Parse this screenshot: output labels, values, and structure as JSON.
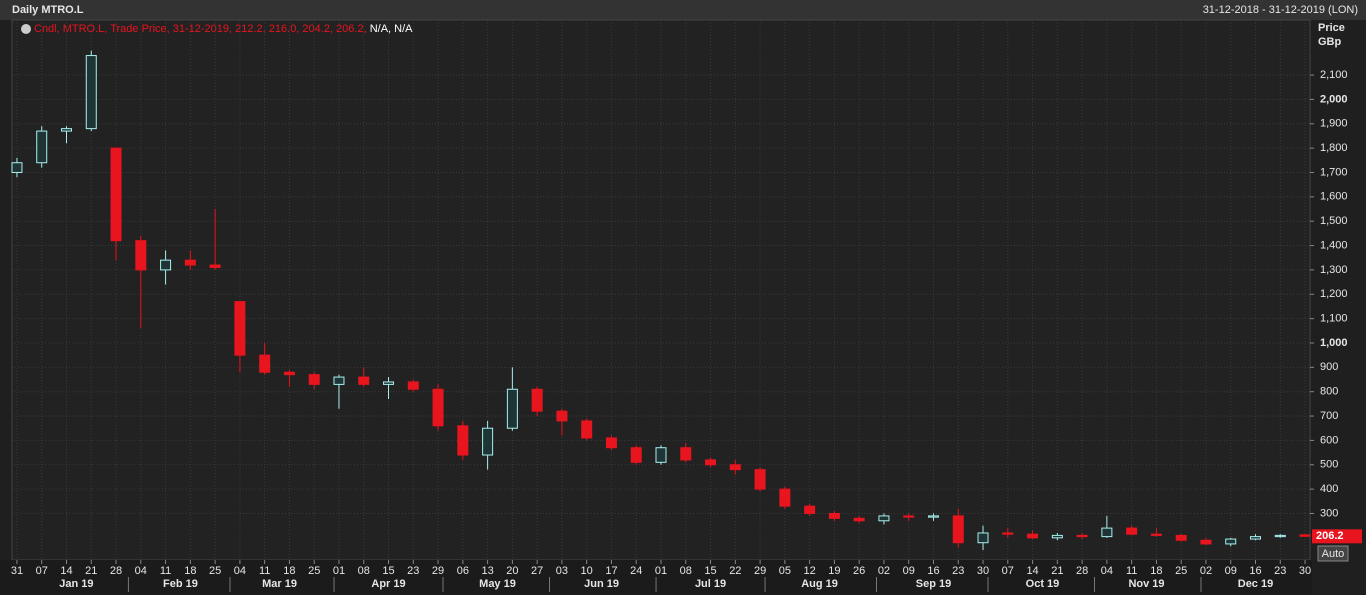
{
  "chart_data": {
    "type": "candlestick",
    "title": "Daily MTRO.L",
    "date_range": "31-12-2018 - 31-12-2019 (LON)",
    "legend_text": "Cndl, MTRO.L, Trade Price, 31-12-2019, 212.2, 216.0, 204.2, 206.2, ",
    "legend_na": "N/A, N/A",
    "y_label": "Price",
    "y_unit": "GBp",
    "auto_button": "Auto",
    "last_price": 206.2,
    "up_color": "#a8f0f0",
    "down_color": "#e8141e",
    "grid": true,
    "xlim": [
      -1,
      261
    ],
    "ylim": [
      109,
      2326
    ],
    "x": [
      0,
      5,
      10,
      15,
      20,
      25,
      30,
      35,
      40,
      45,
      50,
      55,
      60,
      65,
      70,
      75,
      80,
      85,
      90,
      95,
      100,
      105,
      110,
      115,
      120,
      125,
      130,
      135,
      140,
      145,
      150,
      155,
      160,
      165,
      170,
      175,
      180,
      185,
      190,
      195,
      200,
      205,
      210,
      215,
      220,
      225,
      230,
      235,
      240,
      245,
      250,
      255,
      260
    ],
    "open": [
      1700,
      1740,
      1870,
      1880,
      1800,
      1420,
      1300,
      1340,
      1320,
      1170,
      950,
      880,
      870,
      830,
      860,
      830,
      840,
      810,
      660,
      540,
      650,
      810,
      720,
      680,
      610,
      570,
      510,
      570,
      520,
      500,
      480,
      400,
      330,
      300,
      280,
      270,
      290,
      285,
      290,
      180,
      220,
      215,
      200,
      210,
      205,
      240,
      215,
      210,
      190,
      175,
      195,
      205,
      212.2
    ],
    "high": [
      1760,
      1890,
      1890,
      2200,
      1800,
      1440,
      1380,
      1380,
      1550,
      1170,
      1000,
      890,
      880,
      870,
      900,
      860,
      850,
      830,
      680,
      680,
      900,
      820,
      730,
      690,
      620,
      580,
      580,
      590,
      530,
      520,
      490,
      410,
      340,
      310,
      290,
      300,
      300,
      300,
      320,
      250,
      240,
      230,
      220,
      220,
      290,
      250,
      240,
      215,
      200,
      200,
      215,
      215,
      216
    ],
    "low": [
      1680,
      1720,
      1820,
      1870,
      1340,
      1060,
      1240,
      1300,
      1300,
      880,
      870,
      820,
      810,
      730,
      820,
      770,
      800,
      640,
      520,
      480,
      640,
      700,
      620,
      600,
      560,
      500,
      500,
      510,
      490,
      460,
      390,
      320,
      290,
      270,
      260,
      255,
      270,
      270,
      160,
      150,
      200,
      195,
      190,
      195,
      200,
      210,
      205,
      185,
      170,
      165,
      190,
      200,
      204.2
    ],
    "close": [
      1740,
      1870,
      1880,
      2180,
      1420,
      1300,
      1340,
      1320,
      1310,
      950,
      880,
      870,
      830,
      860,
      830,
      840,
      810,
      660,
      540,
      650,
      810,
      720,
      680,
      610,
      570,
      510,
      570,
      520,
      500,
      480,
      400,
      330,
      300,
      280,
      270,
      290,
      285,
      290,
      180,
      220,
      215,
      200,
      210,
      205,
      240,
      215,
      210,
      190,
      175,
      195,
      205,
      210,
      206.2
    ],
    "yticks": [
      300,
      400,
      500,
      600,
      700,
      800,
      900,
      {
        "value": 1000,
        "label": "1,000",
        "bold": true
      },
      {
        "value": 1100,
        "label": "1,100"
      },
      {
        "value": 1200,
        "label": "1,200"
      },
      {
        "value": 1300,
        "label": "1,300"
      },
      {
        "value": 1400,
        "label": "1,400"
      },
      {
        "value": 1500,
        "label": "1,500"
      },
      {
        "value": 1600,
        "label": "1,600"
      },
      {
        "value": 1700,
        "label": "1,700"
      },
      {
        "value": 1800,
        "label": "1,800"
      },
      {
        "value": 1900,
        "label": "1,900"
      },
      {
        "value": 2000,
        "label": "2,000",
        "bold": true
      },
      {
        "value": 2100,
        "label": "2,100"
      }
    ],
    "xticks": [
      {
        "value": 0,
        "label": "31"
      },
      {
        "value": 5,
        "label": "07"
      },
      {
        "value": 10,
        "label": "14"
      },
      {
        "value": 15,
        "label": "21"
      },
      {
        "value": 20,
        "label": "28"
      },
      {
        "value": 25,
        "label": "04"
      },
      {
        "value": 30,
        "label": "11"
      },
      {
        "value": 35,
        "label": "18"
      },
      {
        "value": 40,
        "label": "25"
      },
      {
        "value": 45,
        "label": "04"
      },
      {
        "value": 50,
        "label": "11"
      },
      {
        "value": 55,
        "label": "18"
      },
      {
        "value": 60,
        "label": "25"
      },
      {
        "value": 65,
        "label": "01"
      },
      {
        "value": 70,
        "label": "08"
      },
      {
        "value": 75,
        "label": "15"
      },
      {
        "value": 80,
        "label": "23"
      },
      {
        "value": 85,
        "label": "29"
      },
      {
        "value": 90,
        "label": "06"
      },
      {
        "value": 95,
        "label": "13"
      },
      {
        "value": 100,
        "label": "20"
      },
      {
        "value": 105,
        "label": "27"
      },
      {
        "value": 110,
        "label": "03"
      },
      {
        "value": 115,
        "label": "10"
      },
      {
        "value": 120,
        "label": "17"
      },
      {
        "value": 125,
        "label": "24"
      },
      {
        "value": 130,
        "label": "01"
      },
      {
        "value": 135,
        "label": "08"
      },
      {
        "value": 140,
        "label": "15"
      },
      {
        "value": 145,
        "label": "22"
      },
      {
        "value": 150,
        "label": "29"
      },
      {
        "value": 155,
        "label": "05"
      },
      {
        "value": 160,
        "label": "12"
      },
      {
        "value": 165,
        "label": "19"
      },
      {
        "value": 170,
        "label": "26"
      },
      {
        "value": 175,
        "label": "02"
      },
      {
        "value": 180,
        "label": "09"
      },
      {
        "value": 185,
        "label": "16"
      },
      {
        "value": 190,
        "label": "23"
      },
      {
        "value": 195,
        "label": "30"
      },
      {
        "value": 200,
        "label": "07"
      },
      {
        "value": 205,
        "label": "14"
      },
      {
        "value": 210,
        "label": "21"
      },
      {
        "value": 215,
        "label": "28"
      },
      {
        "value": 220,
        "label": "04"
      },
      {
        "value": 225,
        "label": "11"
      },
      {
        "value": 230,
        "label": "18"
      },
      {
        "value": 235,
        "label": "25"
      },
      {
        "value": 240,
        "label": "02"
      },
      {
        "value": 245,
        "label": "09"
      },
      {
        "value": 250,
        "label": "16"
      },
      {
        "value": 255,
        "label": "23"
      },
      {
        "value": 260,
        "label": "30"
      }
    ],
    "month_ticks": [
      {
        "value": 12,
        "label": "Jan 19"
      },
      {
        "value": 33,
        "label": "Feb 19"
      },
      {
        "value": 53,
        "label": "Mar 19"
      },
      {
        "value": 75,
        "label": "Apr 19"
      },
      {
        "value": 97,
        "label": "May 19"
      },
      {
        "value": 118,
        "label": "Jun 19"
      },
      {
        "value": 140,
        "label": "Jul 19"
      },
      {
        "value": 162,
        "label": "Aug 19"
      },
      {
        "value": 185,
        "label": "Sep 19"
      },
      {
        "value": 207,
        "label": "Oct 19"
      },
      {
        "value": 228,
        "label": "Nov 19"
      },
      {
        "value": 250,
        "label": "Dec 19"
      }
    ]
  }
}
